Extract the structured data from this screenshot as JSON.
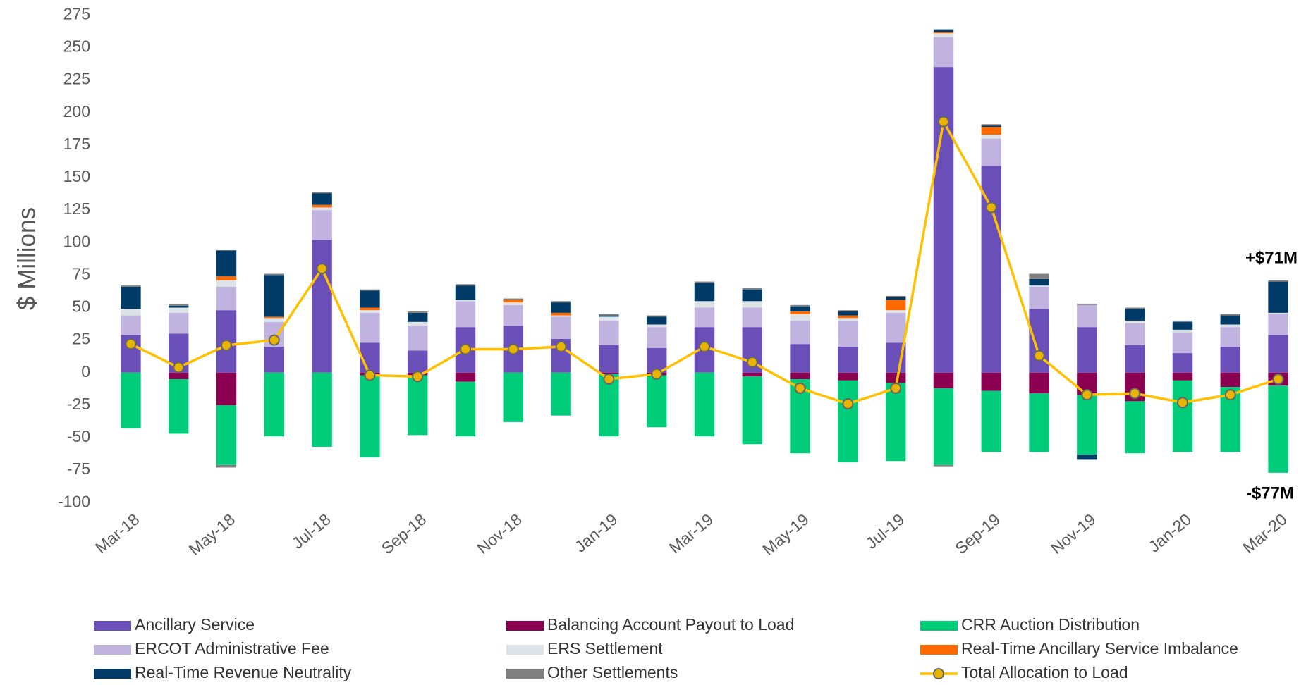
{
  "chart_data": {
    "type": "bar",
    "stacked": true,
    "ylabel": "$ Millions",
    "ylim": [
      -100,
      275
    ],
    "yticks": [
      -100,
      -75,
      -50,
      -25,
      0,
      25,
      50,
      75,
      100,
      125,
      150,
      175,
      200,
      225,
      250,
      275
    ],
    "grid": false,
    "legend": "bottom",
    "categories": [
      "Mar-18",
      null,
      "May-18",
      null,
      "Jul-18",
      null,
      "Sep-18",
      null,
      "Nov-18",
      null,
      "Jan-19",
      null,
      "Mar-19",
      null,
      "May-19",
      null,
      "Jul-19",
      null,
      "Sep-19",
      null,
      "Nov-19",
      null,
      "Jan-20",
      null,
      "Mar-20"
    ],
    "series": [
      {
        "name": "Ancillary Service",
        "color": "#6a4fb8",
        "values": [
          29,
          30,
          48,
          20,
          102,
          23,
          17,
          35,
          36,
          26,
          21,
          19,
          35,
          35,
          22,
          20,
          23,
          235,
          159,
          49,
          35,
          21,
          15,
          20,
          29
        ]
      },
      {
        "name": "Balancing Account Payout to Load",
        "color": "#8b0050",
        "values": [
          0,
          -5,
          -25,
          0,
          0,
          -2,
          -2,
          -7,
          0,
          0,
          -1,
          -2,
          0,
          -3,
          -5,
          -6,
          -8,
          -12,
          -14,
          -16,
          -17,
          -22,
          -6,
          -11,
          -10
        ]
      },
      {
        "name": "CRR Auction Distribution",
        "color": "#00cc7a",
        "values": [
          -43,
          -42,
          -46,
          -49,
          -57,
          -63,
          -46,
          -42,
          -38,
          -33,
          -48,
          -40,
          -49,
          -52,
          -57,
          -63,
          -60,
          -59,
          -47,
          -45,
          -46,
          -40,
          -55,
          -50,
          -67
        ]
      },
      {
        "name": "ERCOT Administrative Fee",
        "color": "#c0b3e0",
        "values": [
          15,
          16,
          18,
          19,
          23,
          23,
          19,
          20,
          16,
          17,
          19,
          16,
          15,
          15,
          18,
          20,
          23,
          23,
          21,
          17,
          17,
          17,
          16,
          15,
          16
        ]
      },
      {
        "name": "ERS Settlement",
        "color": "#dde2e6",
        "values": [
          5,
          4,
          5,
          3,
          2,
          2,
          3,
          1,
          2,
          1,
          3,
          2,
          5,
          5,
          5,
          2,
          2,
          3,
          3,
          1,
          0,
          2,
          2,
          2,
          1
        ]
      },
      {
        "name": "Real-Time Ancillary Service Imbalance",
        "color": "#ff6a00",
        "values": [
          0,
          0,
          3,
          1,
          2,
          2,
          0,
          0,
          2,
          2,
          0,
          0,
          0,
          0,
          2,
          2,
          8,
          1,
          6,
          0,
          0,
          0,
          0,
          0,
          0
        ]
      },
      {
        "name": "Real-Time Revenue Neutrality",
        "color": "#003a66",
        "values": [
          17,
          1.5,
          20,
          32,
          9,
          13,
          7,
          11,
          0,
          8,
          1,
          6,
          14,
          9,
          4,
          3,
          2,
          2,
          1,
          5,
          -4,
          9,
          6,
          7,
          24
        ]
      },
      {
        "name": "Other Settlements",
        "color": "#808080",
        "values": [
          1,
          1,
          -2,
          1,
          1,
          1,
          1,
          1,
          1,
          1,
          1,
          1,
          1,
          1,
          1,
          1,
          1,
          -1,
          1,
          4,
          1,
          1,
          1,
          1,
          1
        ]
      }
    ],
    "line": {
      "name": "Total Allocation to Load",
      "color": "#ffc000",
      "values": [
        22,
        4,
        21,
        25,
        80,
        -2,
        -3,
        18,
        18,
        20,
        -5,
        -1,
        20,
        8,
        -12,
        -24,
        -12,
        193,
        127,
        13,
        -17,
        -16,
        -23,
        -17,
        -5
      ]
    },
    "annotations": [
      "+$71M",
      "-$77M"
    ]
  }
}
